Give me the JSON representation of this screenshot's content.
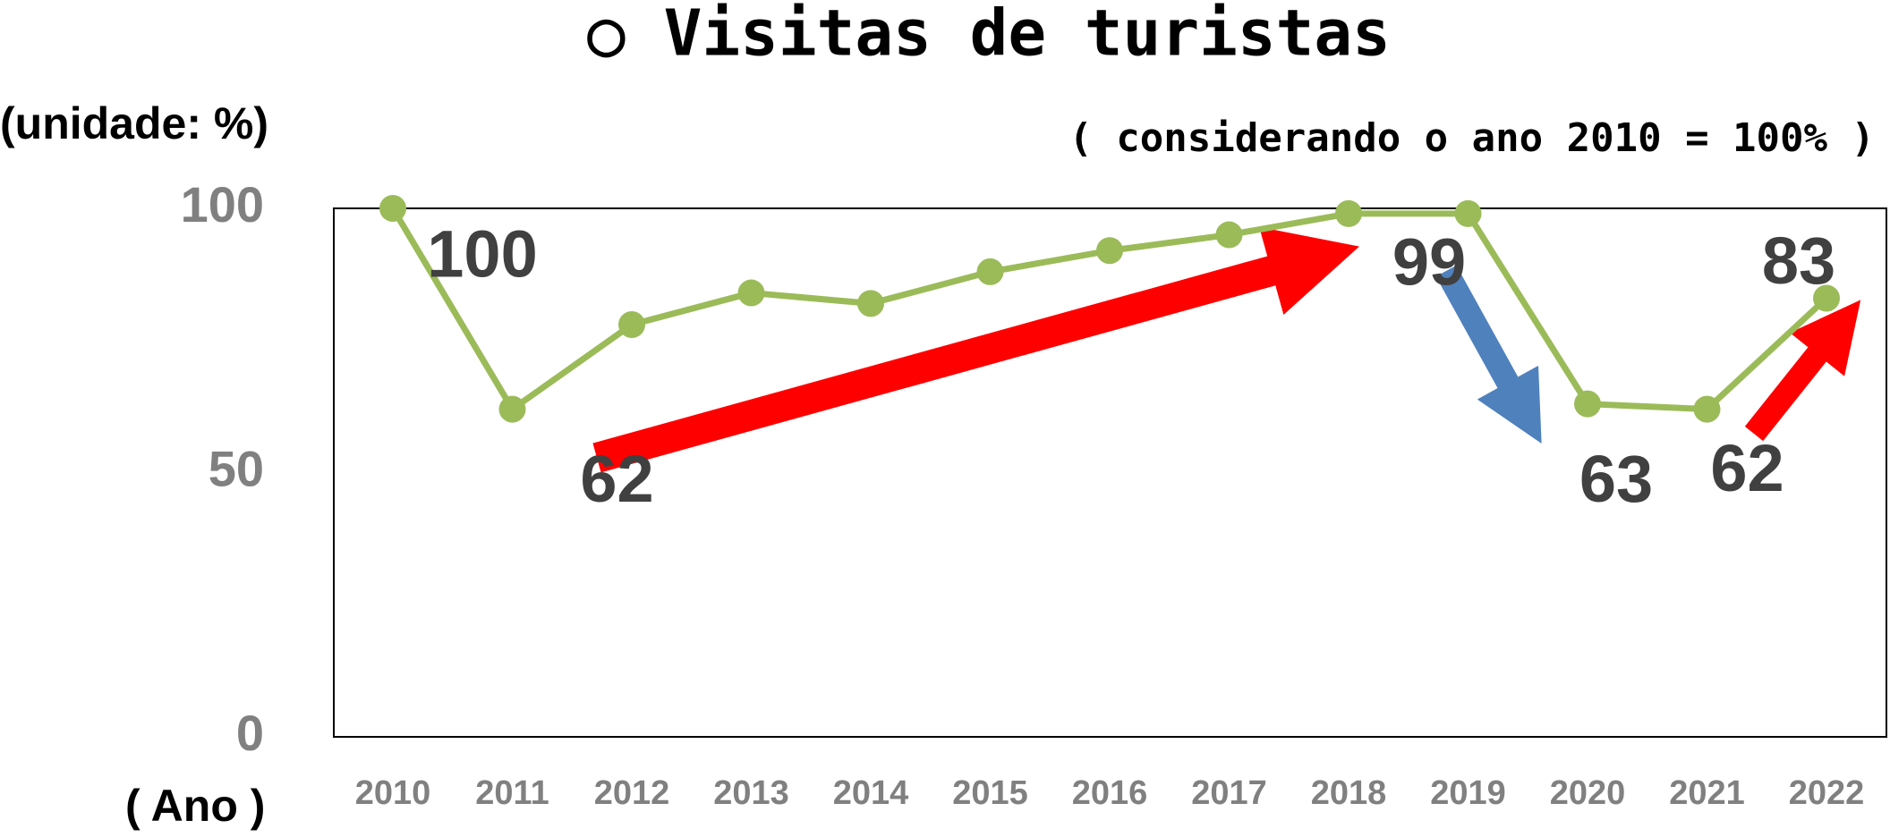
{
  "chart_data": {
    "type": "line",
    "title": "○ Visitas de turistas",
    "subtitle": "( considerando o ano 2010 = 100% )",
    "y_label": "(unidade: %)",
    "x_label": "( Ano )",
    "categories": [
      "2010",
      "2011",
      "2012",
      "2013",
      "2014",
      "2015",
      "2016",
      "2017",
      "2018",
      "2019",
      "2020",
      "2021",
      "2022"
    ],
    "values": [
      100,
      62,
      78,
      84,
      82,
      88,
      92,
      95,
      99,
      99,
      63,
      62,
      83
    ],
    "value_labels": [
      "100",
      "62",
      null,
      null,
      null,
      null,
      null,
      null,
      "99",
      null,
      "63",
      "62",
      "83"
    ],
    "color": "#9bbb59",
    "ylim": [
      0,
      100
    ],
    "yticks": [
      0,
      50,
      100
    ],
    "grid": false
  }
}
